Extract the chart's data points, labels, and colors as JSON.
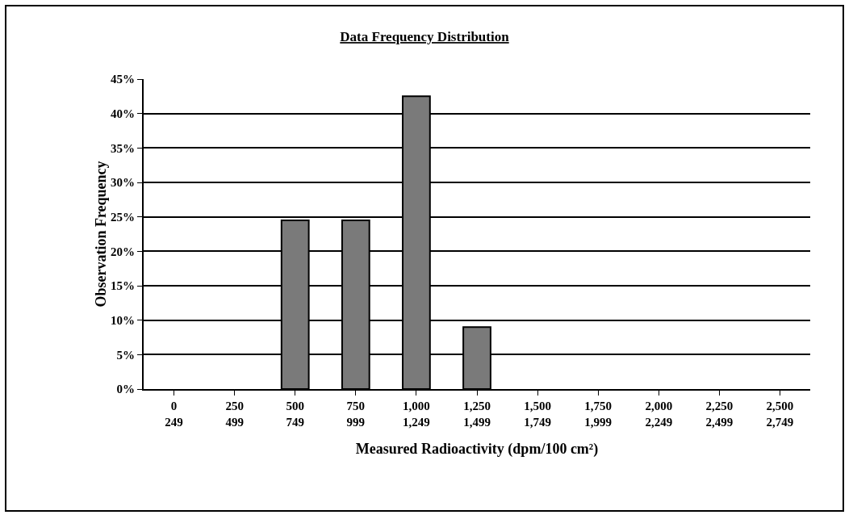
{
  "chart_data": {
    "type": "bar",
    "title": "Data Frequency Distribution",
    "xlabel": "Measured Radioactivity (dpm/100 cm²)",
    "ylabel": "Observation Frequency",
    "categories": [
      "0\n249",
      "250\n499",
      "500\n749",
      "750\n999",
      "1,000\n1,249",
      "1,250\n1,499",
      "1,500\n1,749",
      "1,750\n1,999",
      "2,000\n2,249",
      "2,250\n2,499",
      "2,500\n2,749"
    ],
    "values": [
      null,
      null,
      24.5,
      24.5,
      42.5,
      9,
      null,
      null,
      null,
      null,
      null
    ],
    "color": "#7a7a7a",
    "ylim": [
      0,
      45
    ],
    "yticks": [
      {
        "value": 0,
        "label": "0%"
      },
      {
        "value": 5,
        "label": "5%"
      },
      {
        "value": 10,
        "label": "10%"
      },
      {
        "value": 15,
        "label": "15%"
      },
      {
        "value": 20,
        "label": "20%"
      },
      {
        "value": 25,
        "label": "25%"
      },
      {
        "value": 30,
        "label": "30%"
      },
      {
        "value": 35,
        "label": "35%"
      },
      {
        "value": 40,
        "label": "40%"
      },
      {
        "value": 45,
        "label": "45%"
      }
    ],
    "grid": "y"
  }
}
